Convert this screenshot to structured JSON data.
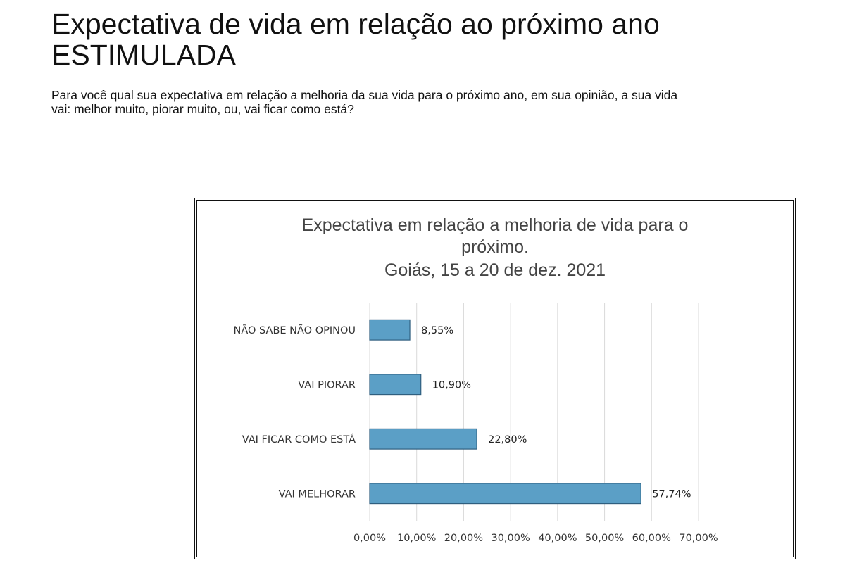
{
  "header": {
    "title_line1": "Expectativa de vida em relação ao próximo ano",
    "title_line2": "ESTIMULADA",
    "question": "Para você qual sua expectativa em relação a melhoria da sua vida para o próximo ano, em sua opinião, a sua vida vai: melhor muito, piorar muito, ou, vai ficar como está?"
  },
  "chart_data": {
    "type": "bar",
    "orientation": "horizontal",
    "title_lines": [
      "Expectativa em relação a melhoria de vida para o",
      "próximo.",
      "Goiás, 15 a 20 de dez. 2021"
    ],
    "categories": [
      "NÃO SABE NÃO OPINOU",
      "VAI PIORAR",
      "VAI FICAR COMO ESTÁ",
      "VAI MELHORAR"
    ],
    "values": [
      8.55,
      10.9,
      22.8,
      57.74
    ],
    "value_labels": [
      "8,55%",
      "10,90%",
      "22,80%",
      "57,74%"
    ],
    "x_ticks": [
      "0,00%",
      "10,00%",
      "20,00%",
      "30,00%",
      "40,00%",
      "50,00%",
      "60,00%",
      "70,00%"
    ],
    "xlim": [
      0,
      70
    ],
    "grid": true,
    "legend": "none",
    "colors": {
      "bar_fill": "#5b9fc6",
      "bar_stroke": "#2f5f7f",
      "grid": "#d9d9d9"
    }
  }
}
